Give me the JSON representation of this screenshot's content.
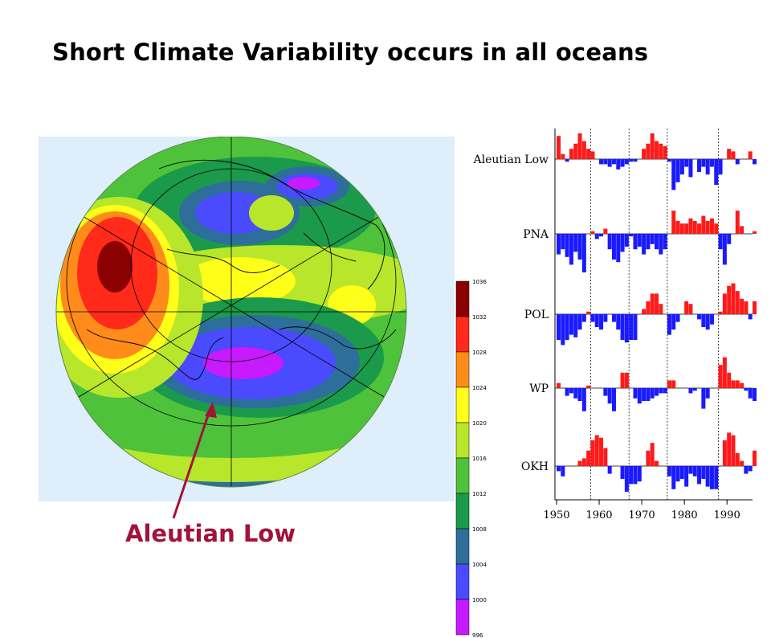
{
  "slide": {
    "title": "Short Climate Variability occurs in all oceans",
    "annotation": "Aleutian Low"
  },
  "colorbar": {
    "labels": [
      "1036",
      "1032",
      "1028",
      "1024",
      "1020",
      "1016",
      "1012",
      "1008",
      "1004",
      "1000",
      "996"
    ],
    "colors": [
      "#8b0000",
      "#ff2a1a",
      "#ff8c1a",
      "#ffff1a",
      "#b8e62a",
      "#4ec23a",
      "#1a9a4a",
      "#2e6e9a",
      "#4a4aff",
      "#c81aff"
    ]
  },
  "chart_data": {
    "type": "bar",
    "x_ticks": [
      "1950",
      "1960",
      "1970",
      "1980",
      "1990"
    ],
    "xlim": [
      1950,
      1996
    ],
    "reference_years": [
      1958,
      1967,
      1976,
      1988
    ],
    "colors": {
      "positive": "#ff1a1a",
      "negative": "#1a1aff"
    },
    "series": [
      {
        "name": "Aleutian Low",
        "years": [
          1950,
          1951,
          1952,
          1953,
          1954,
          1955,
          1956,
          1957,
          1958,
          1959,
          1960,
          1961,
          1962,
          1963,
          1964,
          1965,
          1966,
          1967,
          1968,
          1969,
          1970,
          1971,
          1972,
          1973,
          1974,
          1975,
          1976,
          1977,
          1978,
          1979,
          1980,
          1981,
          1982,
          1983,
          1984,
          1985,
          1986,
          1987,
          1988,
          1989,
          1990,
          1991,
          1992,
          1993,
          1994,
          1995,
          1996
        ],
        "values": [
          0.9,
          0.2,
          -0.1,
          0.4,
          0.6,
          1.0,
          0.7,
          0.4,
          0.3,
          0,
          -0.2,
          -0.2,
          -0.3,
          -0.2,
          -0.4,
          -0.3,
          -0.2,
          -0.1,
          -0.1,
          0,
          0.4,
          0.6,
          1.0,
          0.7,
          0.6,
          0.5,
          -0.1,
          -1.2,
          -0.9,
          -0.6,
          -0.3,
          -0.7,
          0,
          -0.5,
          -0.3,
          -0.6,
          -0.3,
          -1.0,
          -0.6,
          0,
          0.4,
          0.3,
          -0.2,
          0,
          0,
          0.3,
          -0.2
        ]
      },
      {
        "name": "PNA",
        "years": [
          1950,
          1951,
          1952,
          1953,
          1954,
          1955,
          1956,
          1957,
          1958,
          1959,
          1960,
          1961,
          1962,
          1963,
          1964,
          1965,
          1966,
          1967,
          1968,
          1969,
          1970,
          1971,
          1972,
          1973,
          1974,
          1975,
          1976,
          1977,
          1978,
          1979,
          1980,
          1981,
          1982,
          1983,
          1984,
          1985,
          1986,
          1987,
          1988,
          1989,
          1990,
          1991,
          1992,
          1993,
          1994,
          1995,
          1996
        ],
        "values": [
          -0.8,
          -0.6,
          -0.9,
          -1.2,
          -0.7,
          -1.0,
          -1.5,
          0,
          0.1,
          -0.2,
          -0.1,
          0.2,
          -0.6,
          -1.0,
          -1.1,
          -0.7,
          -0.5,
          -0.1,
          -0.6,
          -0.5,
          -0.8,
          -0.6,
          -0.4,
          -0.6,
          -0.8,
          -0.6,
          0,
          0.9,
          0.5,
          0.4,
          0.4,
          0.6,
          0.5,
          0.4,
          0.7,
          0.5,
          0.6,
          0.4,
          -0.6,
          -1.2,
          -0.4,
          0,
          0.9,
          0.3,
          0,
          0,
          0.1
        ]
      },
      {
        "name": "POL",
        "years": [
          1950,
          1951,
          1952,
          1953,
          1954,
          1955,
          1956,
          1957,
          1958,
          1959,
          1960,
          1961,
          1962,
          1963,
          1964,
          1965,
          1966,
          1967,
          1968,
          1969,
          1970,
          1971,
          1972,
          1973,
          1974,
          1975,
          1976,
          1977,
          1978,
          1979,
          1980,
          1981,
          1982,
          1983,
          1984,
          1985,
          1986,
          1987,
          1988,
          1989,
          1990,
          1991,
          1992,
          1993,
          1994,
          1995,
          1996
        ],
        "values": [
          -1.0,
          -1.2,
          -1.0,
          -0.8,
          -0.9,
          -0.6,
          -0.3,
          0.1,
          -0.3,
          -0.5,
          -0.6,
          -0.3,
          0,
          -0.3,
          -0.6,
          -1.0,
          -1.1,
          -1.0,
          -1.0,
          0,
          0.2,
          0.5,
          0.8,
          0.8,
          0.4,
          0,
          -0.8,
          -0.6,
          -0.3,
          0,
          0.5,
          0.4,
          0,
          -0.2,
          -0.5,
          -0.6,
          -0.4,
          0,
          0.1,
          0.8,
          1.1,
          1.2,
          0.9,
          0.6,
          0.5,
          -0.2,
          0.5
        ]
      },
      {
        "name": "WP",
        "years": [
          1950,
          1951,
          1952,
          1953,
          1954,
          1955,
          1956,
          1957,
          1958,
          1959,
          1960,
          1961,
          1962,
          1963,
          1964,
          1965,
          1966,
          1967,
          1968,
          1969,
          1970,
          1971,
          1972,
          1973,
          1974,
          1975,
          1976,
          1977,
          1978,
          1979,
          1980,
          1981,
          1982,
          1983,
          1984,
          1985,
          1986,
          1987,
          1988,
          1989,
          1990,
          1991,
          1992,
          1993,
          1994,
          1995,
          1996
        ],
        "values": [
          0.2,
          0,
          -0.3,
          -0.2,
          -0.4,
          -0.5,
          -0.9,
          0.1,
          0,
          0,
          0,
          -0.3,
          -0.6,
          -0.9,
          0,
          0.6,
          0.6,
          0,
          -0.4,
          -0.6,
          -0.5,
          -0.5,
          -0.4,
          -0.3,
          -0.2,
          -0.2,
          0.3,
          0.3,
          0,
          0,
          0,
          -0.2,
          -0.1,
          0,
          -0.8,
          -0.4,
          0,
          0,
          0.9,
          1.2,
          0.6,
          0.3,
          0.3,
          0.2,
          -0.1,
          -0.4,
          -0.5
        ]
      },
      {
        "name": "OKH",
        "years": [
          1950,
          1951,
          1952,
          1953,
          1954,
          1955,
          1956,
          1957,
          1958,
          1959,
          1960,
          1961,
          1962,
          1963,
          1964,
          1965,
          1966,
          1967,
          1968,
          1969,
          1970,
          1971,
          1972,
          1973,
          1974,
          1975,
          1976,
          1977,
          1978,
          1979,
          1980,
          1981,
          1982,
          1983,
          1984,
          1985,
          1986,
          1987,
          1988,
          1989,
          1990,
          1991,
          1992,
          1993,
          1994,
          1995,
          1996
        ],
        "values": [
          -0.2,
          -0.4,
          0,
          0,
          0,
          0.2,
          0.3,
          0.6,
          1.0,
          1.2,
          1.1,
          0.7,
          -0.3,
          0,
          0,
          -0.5,
          -1.0,
          -0.7,
          -0.7,
          -0.6,
          0,
          0.6,
          0.9,
          0.2,
          0,
          0,
          -0.4,
          -0.9,
          -0.6,
          -0.5,
          -0.8,
          -0.3,
          -0.4,
          -0.7,
          -0.5,
          -0.8,
          -0.9,
          -0.9,
          0,
          1.0,
          1.3,
          1.2,
          0.5,
          0.2,
          -0.3,
          -0.2,
          0.6
        ]
      }
    ]
  }
}
